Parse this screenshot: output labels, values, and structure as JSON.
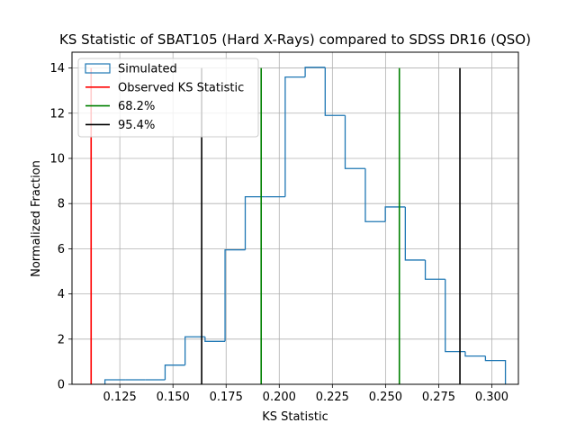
{
  "chart_data": {
    "type": "histogram",
    "title": "KS Statistic of SBAT105 (Hard X-Rays) compared to SDSS DR16 (QSO)",
    "xlabel": "KS Statistic",
    "ylabel": "Normalized Fraction",
    "xlim": [
      0.1025,
      0.3125
    ],
    "ylim": [
      0,
      14.7
    ],
    "xticks": [
      0.125,
      0.15,
      0.175,
      0.2,
      0.225,
      0.25,
      0.275,
      0.3
    ],
    "xtick_labels": [
      "0.125",
      "0.150",
      "0.175",
      "0.200",
      "0.225",
      "0.250",
      "0.275",
      "0.300"
    ],
    "yticks": [
      0,
      2,
      4,
      6,
      8,
      10,
      12,
      14
    ],
    "ytick_labels": [
      "0",
      "2",
      "4",
      "6",
      "8",
      "10",
      "12",
      "14"
    ],
    "grid": true,
    "legend_position": "top-left",
    "histogram": {
      "name": "Simulated",
      "color": "#1f77b4",
      "bin_edges": [
        0.118,
        0.1275,
        0.1369,
        0.1463,
        0.1557,
        0.1651,
        0.1745,
        0.184,
        0.1934,
        0.2028,
        0.2122,
        0.2216,
        0.231,
        0.2405,
        0.2499,
        0.2593,
        0.2687,
        0.2781,
        0.2875,
        0.297,
        0.3064
      ],
      "values": [
        0.2,
        0.2,
        0.2,
        0.85,
        2.1,
        1.9,
        5.95,
        8.3,
        8.3,
        13.6,
        14.03,
        11.9,
        9.55,
        7.2,
        7.85,
        5.5,
        4.65,
        1.45,
        1.25,
        1.05
      ]
    },
    "vlines": [
      {
        "name": "Observed KS Statistic",
        "x": 0.1115,
        "y_max": 14.0,
        "color": "#ff0000"
      },
      {
        "name": "68.2%",
        "x": 0.1915,
        "y_max": 14.0,
        "color": "#008000"
      },
      {
        "name": "68.2%",
        "x": 0.2565,
        "y_max": 14.0,
        "color": "#008000"
      },
      {
        "name": "95.4%",
        "x": 0.1635,
        "y_max": 14.0,
        "color": "#000000"
      },
      {
        "name": "95.4%",
        "x": 0.285,
        "y_max": 14.0,
        "color": "#000000"
      }
    ],
    "legend": [
      {
        "label": "Simulated",
        "kind": "patch",
        "color": "#1f77b4"
      },
      {
        "label": "Observed KS Statistic",
        "kind": "line",
        "color": "#ff0000"
      },
      {
        "label": "68.2%",
        "kind": "line",
        "color": "#008000"
      },
      {
        "label": "95.4%",
        "kind": "line",
        "color": "#000000"
      }
    ]
  }
}
